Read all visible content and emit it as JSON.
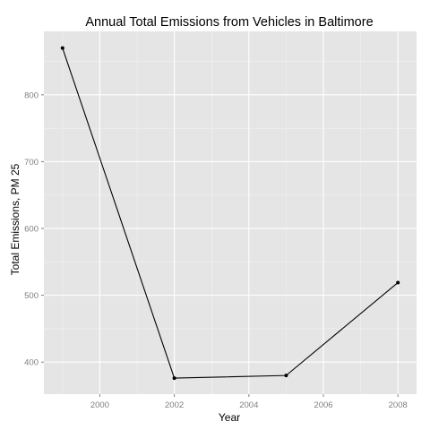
{
  "chart_data": {
    "type": "line",
    "title": "Annual Total Emissions from Vehicles in Baltimore",
    "xlabel": "Year",
    "ylabel": "Total Emissions, PM 25",
    "x": [
      1999,
      2002,
      2005,
      2008
    ],
    "series": [
      {
        "name": "Total Emissions",
        "values": [
          870,
          376,
          380,
          519
        ]
      }
    ],
    "xlim": [
      1998.5,
      2008.5
    ],
    "ylim": [
      352,
      895
    ],
    "x_ticks": [
      2000,
      2002,
      2004,
      2006,
      2008
    ],
    "x_tick_labels": [
      "2000",
      "2002",
      "2004",
      "2006",
      "2008"
    ],
    "y_ticks": [
      400,
      500,
      600,
      700,
      800
    ],
    "y_tick_labels": [
      "400",
      "500",
      "600",
      "700",
      "800"
    ],
    "grid": true,
    "colors": {
      "panel_background": "#e5e5e5",
      "grid_major": "#ffffff",
      "grid_minor": "#f2f2f2",
      "line": "#000000",
      "tick_label": "#7f7f7f"
    }
  }
}
